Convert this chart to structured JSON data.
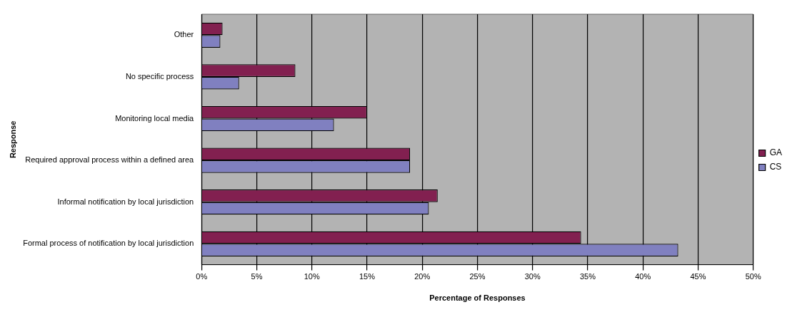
{
  "chart_data": {
    "type": "bar",
    "orientation": "horizontal",
    "xlabel": "Percentage of Responses",
    "ylabel": "Response",
    "categories": [
      "Other",
      "No specific process",
      "Monitoring local media",
      "Required approval process within a defined area",
      "Informal notification by local jurisdiction",
      "Formal process of notification by local jurisdiction"
    ],
    "series": [
      {
        "name": "GA",
        "color": "#822050",
        "values": [
          1.9,
          8.5,
          15.0,
          18.9,
          21.4,
          34.4
        ]
      },
      {
        "name": "CS",
        "color": "#8080c0",
        "values": [
          1.7,
          3.4,
          12.0,
          18.9,
          20.6,
          43.2
        ]
      }
    ],
    "xlim": [
      0,
      50
    ],
    "xticks": [
      {
        "value": 0,
        "label": "0%"
      },
      {
        "value": 5,
        "label": "5%"
      },
      {
        "value": 10,
        "label": "10%"
      },
      {
        "value": 15,
        "label": "15%"
      },
      {
        "value": 20,
        "label": "20%"
      },
      {
        "value": 25,
        "label": "25%"
      },
      {
        "value": 30,
        "label": "30%"
      },
      {
        "value": 35,
        "label": "35%"
      },
      {
        "value": 40,
        "label": "40%"
      },
      {
        "value": 45,
        "label": "45%"
      },
      {
        "value": 50,
        "label": "50%"
      }
    ],
    "grid": "x",
    "legend": "right"
  }
}
